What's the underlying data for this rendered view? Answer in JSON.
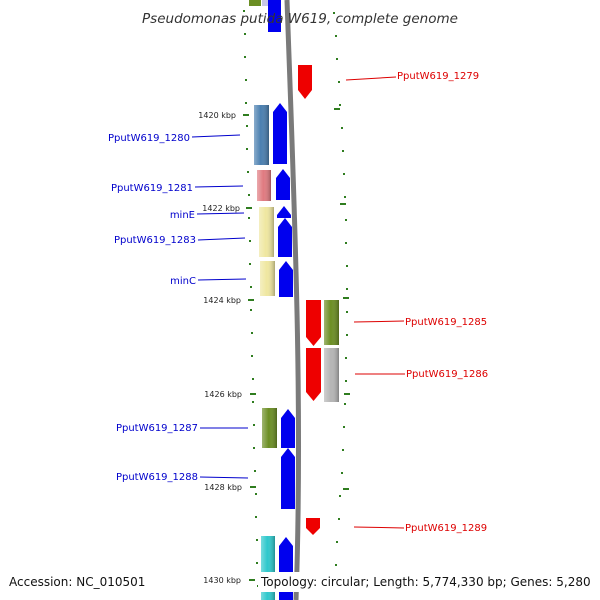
{
  "title": "Pseudomonas putida W619, complete genome",
  "footer": {
    "accession": "Accession: NC_010501",
    "summary": "Topology: circular; Length: 5,774,330 bp; Genes: 5,280"
  },
  "colors": {
    "forward_label": "#0000cc",
    "reverse_label": "#dd0000",
    "backbone": "#7a7a7a",
    "tick": "#2f7d1f",
    "cds_forward": "#0000ee",
    "cds_reverse": "#ee0000"
  },
  "scale": {
    "labels": [
      "1420 kbp",
      "1422 kbp",
      "1424 kbp",
      "1426 kbp",
      "1428 kbp",
      "1430 kbp"
    ]
  },
  "genes": {
    "forward": [
      {
        "label": "PputW619_1280",
        "cog_color": "#4a7fb0"
      },
      {
        "label": "PputW619_1281",
        "cog_color": "#e07a80"
      },
      {
        "label": "minE",
        "cog_color": "#efe7a0"
      },
      {
        "label": "PputW619_1283",
        "cog_color": "#efe7a0"
      },
      {
        "label": "minC",
        "cog_color": "#efe7a0"
      },
      {
        "label": "PputW619_1287",
        "cog_color": "#6b8e23"
      },
      {
        "label": "PputW619_1288",
        "cog_color": ""
      }
    ],
    "reverse": [
      {
        "label": "PputW619_1279",
        "cog_color": ""
      },
      {
        "label": "PputW619_1285",
        "cog_color": "#6b8e23"
      },
      {
        "label": "PputW619_1286",
        "cog_color": "#b5b5b5"
      },
      {
        "label": "PputW619_1289",
        "cog_color": ""
      }
    ]
  }
}
